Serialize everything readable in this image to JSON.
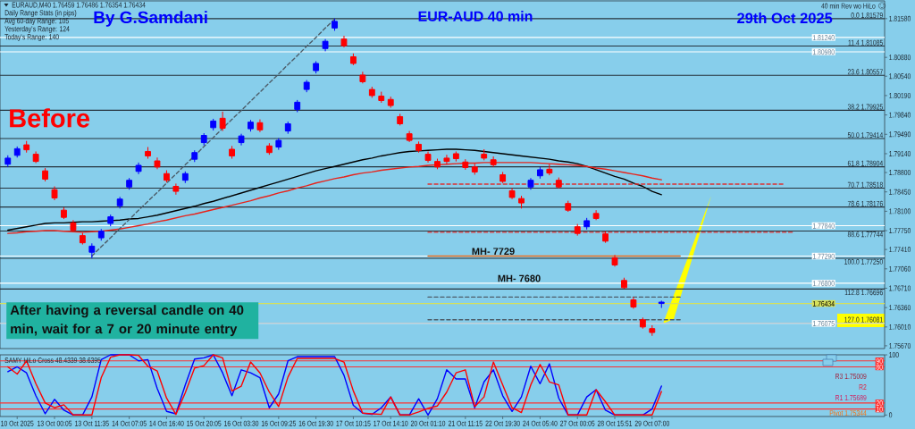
{
  "chart_data": [
    {
      "type": "candlestick",
      "title": "EUR-AUD 40 min",
      "subtitle": "29th Oct 2025",
      "annotations": [
        "EURAUD,M40 1.76459 1.76486 1.76354 1.76434",
        "Daily Range Stats (in pips)",
        "Avg 60-day Range: 105",
        "Yesterday's Range: 124",
        "Today's Range: 140",
        "By G.Samdani",
        "Before",
        "After having a reversal candle on 40 min, wait for a 7 or 20 minute entry",
        "40 min Rev wo HiLo",
        {
          "text": "MH- 7729",
          "y": 1.7729
        },
        {
          "text": "MH- 7680",
          "y": 1.768
        }
      ],
      "categories": [
        null,
        null,
        null,
        null,
        null,
        null,
        null,
        null,
        null,
        null,
        null,
        null,
        null,
        null,
        null,
        null,
        null,
        null,
        null,
        null,
        null,
        null,
        null,
        null,
        null,
        null,
        null,
        null,
        null,
        null,
        null,
        null,
        null,
        null,
        null,
        null,
        null,
        null,
        null,
        null,
        null,
        null,
        null,
        null,
        null,
        null,
        null,
        null,
        null,
        null,
        null,
        null,
        null,
        null,
        null,
        null,
        null,
        null,
        null,
        null,
        null,
        null,
        null,
        null,
        null,
        null,
        null,
        null,
        null,
        null,
        null,
        null,
        null,
        null,
        null,
        null,
        null,
        null,
        null,
        null,
        null,
        null,
        null,
        null,
        null,
        null,
        null,
        null,
        null,
        null,
        null
      ],
      "ohlc": [
        [
          1.7895,
          1.7911,
          1.789,
          1.7906
        ],
        [
          1.7911,
          1.7927,
          1.7907,
          1.7923
        ],
        [
          1.793,
          1.7937,
          1.7916,
          1.7921
        ],
        [
          1.7913,
          1.7918,
          1.7897,
          1.79
        ],
        [
          1.7883,
          1.7888,
          1.7864,
          1.7868
        ],
        [
          1.7849,
          1.7855,
          1.783,
          1.7834
        ],
        [
          1.7812,
          1.7817,
          1.7796,
          1.7799
        ],
        [
          1.7789,
          1.7794,
          1.7773,
          1.7776
        ],
        [
          1.7766,
          1.7771,
          1.775,
          1.7753
        ],
        [
          1.7736,
          1.7752,
          1.7725,
          1.7747
        ],
        [
          1.7762,
          1.7778,
          1.7757,
          1.7774
        ],
        [
          1.7788,
          1.7804,
          1.7783,
          1.78
        ],
        [
          1.782,
          1.7836,
          1.7815,
          1.7832
        ],
        [
          1.7854,
          1.787,
          1.7849,
          1.7866
        ],
        [
          1.7882,
          1.7898,
          1.7877,
          1.7893
        ],
        [
          1.7918,
          1.7926,
          1.7905,
          1.791
        ],
        [
          1.7901,
          1.7907,
          1.7886,
          1.789
        ],
        [
          1.7878,
          1.7884,
          1.7862,
          1.7866
        ],
        [
          1.7855,
          1.786,
          1.784,
          1.7846
        ],
        [
          1.7866,
          1.7882,
          1.7861,
          1.7878
        ],
        [
          1.7904,
          1.792,
          1.7899,
          1.7916
        ],
        [
          1.7934,
          1.7951,
          1.7929,
          1.7947
        ],
        [
          1.7961,
          1.7977,
          1.7956,
          1.7973
        ],
        [
          1.7978,
          1.799,
          1.7955,
          1.796
        ],
        [
          1.7922,
          1.7928,
          1.7905,
          1.791
        ],
        [
          1.7934,
          1.795,
          1.7929,
          1.7946
        ],
        [
          1.7959,
          1.7975,
          1.7954,
          1.7971
        ],
        [
          1.797,
          1.7976,
          1.7953,
          1.7957
        ],
        [
          1.7928,
          1.7933,
          1.7912,
          1.7916
        ],
        [
          1.7926,
          1.7942,
          1.7921,
          1.7938
        ],
        [
          1.7955,
          1.7972,
          1.795,
          1.7968
        ],
        [
          1.7994,
          1.8011,
          1.7989,
          1.8007
        ],
        [
          1.803,
          1.8047,
          1.8025,
          1.8043
        ],
        [
          1.8064,
          1.8081,
          1.8059,
          1.8077
        ],
        [
          1.8104,
          1.8121,
          1.8099,
          1.8117
        ],
        [
          1.8141,
          1.8158,
          1.8136,
          1.8153
        ],
        [
          1.8121,
          1.8127,
          1.8106,
          1.8109
        ],
        [
          1.8089,
          1.8095,
          1.8074,
          1.8077
        ],
        [
          1.8056,
          1.8062,
          1.8041,
          1.8044
        ],
        [
          1.803,
          1.8035,
          1.8015,
          1.8019
        ],
        [
          1.8018,
          1.8026,
          1.8006,
          1.801
        ],
        [
          1.8012,
          1.8017,
          1.7997,
          1.8001
        ],
        [
          1.7981,
          1.7986,
          1.7965,
          1.7968
        ],
        [
          1.795,
          1.7955,
          1.7935,
          1.7938
        ],
        [
          1.7931,
          1.7936,
          1.7916,
          1.792
        ],
        [
          1.7913,
          1.7918,
          1.7898,
          1.7902
        ],
        [
          1.79,
          1.7905,
          1.7886,
          1.789
        ],
        [
          1.7906,
          1.7912,
          1.7895,
          1.79
        ],
        [
          1.7914,
          1.7918,
          1.79,
          1.7905
        ],
        [
          1.7899,
          1.7904,
          1.7885,
          1.7889
        ],
        [
          1.789,
          1.7896,
          1.7876,
          1.7881
        ],
        [
          1.7913,
          1.7922,
          1.7902,
          1.7906
        ],
        [
          1.7903,
          1.7909,
          1.789,
          1.7894
        ],
        [
          1.7876,
          1.7881,
          1.7861,
          1.7864
        ],
        [
          1.7847,
          1.7852,
          1.7832,
          1.7835
        ],
        [
          1.7833,
          1.7838,
          1.7815,
          1.7825
        ],
        [
          1.7854,
          1.787,
          1.7849,
          1.7866
        ],
        [
          1.7874,
          1.789,
          1.7869,
          1.7885
        ],
        [
          1.7886,
          1.7895,
          1.7875,
          1.7879
        ],
        [
          1.7866,
          1.7871,
          1.7851,
          1.7854
        ],
        [
          1.7824,
          1.7829,
          1.7809,
          1.7812
        ],
        [
          1.7782,
          1.7787,
          1.7766,
          1.777
        ],
        [
          1.7782,
          1.7798,
          1.7777,
          1.7793
        ],
        [
          1.7806,
          1.7812,
          1.7794,
          1.7797
        ],
        [
          1.7769,
          1.7774,
          1.7753,
          1.7756
        ],
        [
          1.7726,
          1.7731,
          1.771,
          1.7713
        ],
        [
          1.7685,
          1.769,
          1.767,
          1.7672
        ],
        [
          1.765,
          1.7655,
          1.7634,
          1.7637
        ],
        [
          1.7614,
          1.7618,
          1.7598,
          1.7601
        ],
        [
          1.7598,
          1.7604,
          1.7585,
          1.7591
        ],
        [
          1.76459,
          1.76486,
          1.76354,
          1.76434
        ],
        null,
        null,
        null,
        null,
        null,
        null,
        null,
        null,
        null,
        null,
        null,
        null,
        null,
        null,
        null,
        null,
        null,
        null,
        null,
        null
      ],
      "colors": [
        "#0000ff",
        "#0000ff",
        "#ff0000",
        "#ff0000",
        "#ff0000",
        "#ff0000",
        "#ff0000",
        "#ff0000",
        "#ff0000",
        "#0000ff",
        "#0000ff",
        "#0000ff",
        "#0000ff",
        "#0000ff",
        "#0000ff",
        "#ff0000",
        "#ff0000",
        "#ff0000",
        "#ff0000",
        "#0000ff",
        "#0000ff",
        "#0000ff",
        "#0000ff",
        "#ff0000",
        "#ff0000",
        "#0000ff",
        "#0000ff",
        "#ff0000",
        "#ff0000",
        "#0000ff",
        "#0000ff",
        "#0000ff",
        "#0000ff",
        "#0000ff",
        "#0000ff",
        "#0000ff",
        "#ff0000",
        "#ff0000",
        "#ff0000",
        "#ff0000",
        "#ff0000",
        "#ff0000",
        "#ff0000",
        "#ff0000",
        "#ff0000",
        "#ff0000",
        "#ff0000",
        "#ff0000",
        "#ff0000",
        "#ff0000",
        "#ff0000",
        "#ff0000",
        "#ff0000",
        "#ff0000",
        "#ff0000",
        "#ff0000",
        "#0000ff",
        "#0000ff",
        "#ff0000",
        "#ff0000",
        "#ff0000",
        "#ff0000",
        "#0000ff",
        "#ff0000",
        "#ff0000",
        "#ff0000",
        "#ff0000",
        "#ff0000",
        "#ff0000",
        "#ff0000",
        "#0000ff",
        null,
        null,
        null,
        null,
        null,
        null,
        null,
        null,
        null,
        null,
        null,
        null,
        null,
        null,
        null,
        null,
        null,
        null,
        null,
        null
      ],
      "series": [
        {
          "type": "line",
          "color": "#000000",
          "values": [
            1.7776,
            1.7779,
            1.7782,
            1.7785,
            1.7788,
            1.7789,
            1.7789,
            1.779,
            1.7791,
            1.7791,
            1.7792,
            1.7793,
            1.7794,
            1.7796,
            1.7797,
            1.78,
            1.7803,
            1.7807,
            1.7811,
            1.7815,
            1.7819,
            1.7824,
            1.7828,
            1.7833,
            1.7838,
            1.7843,
            1.7848,
            1.7853,
            1.7858,
            1.7863,
            1.7868,
            1.7873,
            1.7878,
            1.7883,
            1.7887,
            1.7891,
            1.7895,
            1.7899,
            1.7903,
            1.7906,
            1.791,
            1.7913,
            1.7916,
            1.7918,
            1.7919,
            1.792,
            1.7921,
            1.7922,
            1.7922,
            1.7921,
            1.792,
            1.7918,
            1.7916,
            1.7914,
            1.7912,
            1.791,
            1.7908,
            1.7906,
            1.7904,
            1.7901,
            1.7899,
            1.7896,
            1.7891,
            1.7885,
            1.7879,
            1.7873,
            1.7868,
            1.7861,
            1.7855,
            1.7846,
            1.784,
            null,
            null,
            null,
            null,
            null,
            null,
            null,
            null,
            null,
            null,
            null,
            null,
            null,
            null,
            null,
            null,
            null,
            null,
            null,
            null
          ]
        },
        {
          "type": "line",
          "color": "#e8231b",
          "values": [
            1.777,
            1.7771,
            1.7773,
            1.7774,
            1.7775,
            1.7775,
            1.7774,
            1.7773,
            1.7772,
            1.7773,
            1.7774,
            1.7776,
            1.7778,
            1.7781,
            1.7784,
            1.7787,
            1.7791,
            1.7794,
            1.7798,
            1.7802,
            1.7805,
            1.7809,
            1.7813,
            1.7817,
            1.7821,
            1.7825,
            1.7829,
            1.7834,
            1.7838,
            1.7843,
            1.7847,
            1.7852,
            1.7856,
            1.7861,
            1.7865,
            1.7869,
            1.7872,
            1.7876,
            1.7879,
            1.7881,
            1.7884,
            1.7886,
            1.7888,
            1.789,
            1.7891,
            1.7893,
            1.7894,
            1.7895,
            1.7896,
            1.7897,
            1.7897,
            1.7898,
            1.7898,
            1.7898,
            1.7898,
            1.7898,
            1.7898,
            1.7897,
            1.7896,
            1.7895,
            1.7894,
            1.7893,
            1.7891,
            1.7888,
            1.7886,
            1.7883,
            1.788,
            1.7877,
            1.7874,
            1.787,
            1.7867,
            null,
            null,
            null,
            null,
            null,
            null,
            null,
            null,
            null,
            null,
            null,
            null,
            null,
            null,
            null,
            null,
            null,
            null,
            null,
            null
          ]
        },
        {
          "type": "line",
          "color": "#4d5d69",
          "line_style": "dashed",
          "values": [
            null,
            null,
            null,
            null,
            null,
            null,
            null,
            null,
            null,
            1.7729,
            1.7746,
            1.7762,
            1.7779,
            1.7795,
            1.7812,
            1.7828,
            1.7844,
            1.7861,
            1.7877,
            1.7894,
            1.791,
            1.7927,
            1.7943,
            1.796,
            1.7976,
            1.7992,
            1.8009,
            1.8025,
            1.8042,
            1.8058,
            1.8075,
            1.8091,
            1.8108,
            1.8124,
            1.8141,
            1.8157,
            null,
            null,
            null,
            null,
            null,
            null,
            null,
            null,
            null,
            null,
            null,
            null,
            null,
            null,
            null,
            null,
            null,
            null,
            null,
            null,
            null,
            null,
            null,
            null,
            null,
            null,
            null,
            null,
            null,
            null,
            null,
            null,
            null,
            null,
            null,
            null,
            null,
            null,
            null,
            null,
            null,
            null,
            null,
            null,
            null,
            null,
            null,
            null,
            null,
            null,
            null,
            null,
            null,
            null,
            null
          ]
        },
        {
          "type": "line",
          "color": "#f07020",
          "values": [
            null,
            null,
            null,
            null,
            null,
            null,
            null,
            null,
            null,
            null,
            null,
            null,
            null,
            null,
            null,
            null,
            null,
            null,
            null,
            null,
            null,
            null,
            null,
            null,
            null,
            null,
            null,
            null,
            null,
            null,
            null,
            null,
            null,
            null,
            null,
            null,
            null,
            null,
            null,
            null,
            null,
            null,
            null,
            null,
            null,
            1.7729,
            1.7729,
            1.7729,
            1.7729,
            1.7729,
            1.7729,
            1.7729,
            1.7729,
            1.7729,
            1.7729,
            1.7729,
            1.7729,
            1.7729,
            1.7729,
            1.7729,
            1.7729,
            1.7729,
            1.7729,
            1.7729,
            1.7729,
            1.7729,
            1.7729,
            1.7729,
            1.7729,
            1.7729,
            1.7729,
            1.7729,
            1.7729,
            null,
            null,
            null,
            null,
            null,
            null,
            null,
            null,
            null,
            null,
            null,
            null,
            null,
            null,
            null,
            null,
            null,
            null
          ]
        },
        {
          "type": "line",
          "color": "#e03030",
          "line_style": "dashed",
          "values": [
            null,
            null,
            null,
            null,
            null,
            null,
            null,
            null,
            null,
            null,
            null,
            null,
            null,
            null,
            null,
            null,
            null,
            null,
            null,
            null,
            null,
            null,
            null,
            null,
            null,
            null,
            null,
            null,
            null,
            null,
            null,
            null,
            null,
            null,
            null,
            null,
            null,
            null,
            null,
            null,
            null,
            null,
            null,
            null,
            null,
            1.7859,
            1.7859,
            1.7859,
            1.7859,
            1.7859,
            1.7859,
            1.7859,
            1.7859,
            1.7859,
            1.7859,
            1.7859,
            1.7859,
            1.7859,
            1.7859,
            1.7859,
            1.7859,
            1.7859,
            1.7859,
            1.7859,
            1.7859,
            1.7859,
            1.7859,
            1.7859,
            1.7859,
            1.7859,
            1.7859,
            1.7859,
            1.7859,
            1.7859,
            1.7859,
            1.7859,
            1.7859,
            1.7859,
            1.7859,
            1.7859,
            1.7859,
            1.7859,
            1.7859,
            1.7859,
            null,
            null,
            null,
            null,
            null,
            null,
            null
          ]
        },
        {
          "type": "line",
          "color": "#e03030",
          "line_style": "dashed",
          "values": [
            null,
            null,
            null,
            null,
            null,
            null,
            null,
            null,
            null,
            null,
            null,
            null,
            null,
            null,
            null,
            null,
            null,
            null,
            null,
            null,
            null,
            null,
            null,
            null,
            null,
            null,
            null,
            null,
            null,
            null,
            null,
            null,
            null,
            null,
            null,
            null,
            null,
            null,
            null,
            null,
            null,
            null,
            null,
            null,
            null,
            1.7772,
            1.7772,
            1.7772,
            1.7772,
            1.7772,
            1.7772,
            1.7772,
            1.7772,
            1.7772,
            1.7772,
            1.7772,
            1.7772,
            1.7772,
            1.7772,
            1.7772,
            1.7772,
            1.7772,
            1.7772,
            1.7772,
            1.7772,
            1.7772,
            1.7772,
            1.7772,
            1.7772,
            1.7772,
            1.7772,
            1.7772,
            1.7772,
            1.7772,
            1.7772,
            1.7772,
            1.7772,
            1.7772,
            1.7772,
            1.7772,
            1.7772,
            1.7772,
            1.7772,
            1.7772,
            1.7772,
            null,
            null,
            null,
            null,
            null,
            null
          ]
        },
        {
          "type": "line",
          "color": "#4d5d69",
          "line_style": "dashed",
          "values": [
            null,
            null,
            null,
            null,
            null,
            null,
            null,
            null,
            null,
            null,
            null,
            null,
            null,
            null,
            null,
            null,
            null,
            null,
            null,
            null,
            null,
            null,
            null,
            null,
            null,
            null,
            null,
            null,
            null,
            null,
            null,
            null,
            null,
            null,
            null,
            null,
            null,
            null,
            null,
            null,
            null,
            null,
            null,
            null,
            null,
            1.7655,
            1.7655,
            1.7655,
            1.7655,
            1.7655,
            1.7655,
            1.7655,
            1.7655,
            1.7655,
            1.7655,
            1.7655,
            1.7655,
            1.7655,
            1.7655,
            1.7655,
            1.7655,
            1.7655,
            1.7655,
            1.7655,
            1.7655,
            1.7655,
            1.7655,
            1.7655,
            1.7655,
            1.7655,
            1.7655,
            1.7655,
            1.7655,
            null,
            null,
            null,
            null,
            null,
            null,
            null,
            null,
            null,
            null,
            null,
            null,
            null,
            null,
            null,
            null,
            null,
            null
          ]
        },
        {
          "type": "line",
          "color": "#4d5d69",
          "line_style": "dashed",
          "values": [
            null,
            null,
            null,
            null,
            null,
            null,
            null,
            null,
            null,
            null,
            null,
            null,
            null,
            null,
            null,
            null,
            null,
            null,
            null,
            null,
            null,
            null,
            null,
            null,
            null,
            null,
            null,
            null,
            null,
            null,
            null,
            null,
            null,
            null,
            null,
            null,
            null,
            null,
            null,
            null,
            null,
            null,
            null,
            null,
            null,
            1.7614,
            1.7614,
            1.7614,
            1.7614,
            1.7614,
            1.7614,
            1.7614,
            1.7614,
            1.7614,
            1.7614,
            1.7614,
            1.7614,
            1.7614,
            1.7614,
            1.7614,
            1.7614,
            1.7614,
            1.7614,
            1.7614,
            1.7614,
            1.7614,
            1.7614,
            1.7614,
            1.7614,
            1.7614,
            1.7614,
            1.7614,
            1.7614,
            null,
            null,
            null,
            null,
            null,
            null,
            null,
            null,
            null,
            null,
            null,
            null,
            null,
            null,
            null,
            null,
            null,
            null
          ]
        }
      ],
      "ylim": [
        1.7562,
        1.819
      ],
      "yticks": [
        {
          "value": 1.8158,
          "label": "1.81580"
        },
        {
          "value": 1.8088,
          "label": "1.80880"
        },
        {
          "value": 1.8054,
          "label": "1.80540"
        },
        {
          "value": 1.8019,
          "label": "1.80190"
        },
        {
          "value": 1.7984,
          "label": "1.79840"
        },
        {
          "value": 1.7949,
          "label": "1.79490"
        },
        {
          "value": 1.7914,
          "label": "1.79140"
        },
        {
          "value": 1.788,
          "label": "1.78800"
        },
        {
          "value": 1.7845,
          "label": "1.78450"
        },
        {
          "value": 1.781,
          "label": "1.78100"
        },
        {
          "value": 1.7775,
          "label": "1.77750"
        },
        {
          "value": 1.7741,
          "label": "1.77410"
        },
        {
          "value": 1.7706,
          "label": "1.77060"
        },
        {
          "value": 1.7671,
          "label": "1.76710"
        },
        {
          "value": 1.7636,
          "label": "1.76360"
        },
        {
          "value": 1.7601,
          "label": "1.76010"
        },
        {
          "value": 1.7567,
          "label": "1.75670"
        }
      ],
      "ref_lines": [
        {
          "axis": "y",
          "value": 1.81579,
          "label": "0.0 1.81579",
          "color": "#26333d"
        },
        {
          "axis": "y",
          "value": 1.81085,
          "label": "11.4 1.81085",
          "color": "#26333d"
        },
        {
          "axis": "y",
          "value": 1.80557,
          "label": "23.6 1.80557",
          "color": "#26333d"
        },
        {
          "axis": "y",
          "value": 1.79925,
          "label": "38.2 1.79925",
          "color": "#26333d"
        },
        {
          "axis": "y",
          "value": 1.79414,
          "label": "50.0 1.79414",
          "color": "#26333d"
        },
        {
          "axis": "y",
          "value": 1.78904,
          "label": "61.8 1.78904",
          "color": "#26333d"
        },
        {
          "axis": "y",
          "value": 1.78518,
          "label": "70.7 1.78518",
          "color": "#26333d"
        },
        {
          "axis": "y",
          "value": 1.78176,
          "label": "78.6 1.78176",
          "color": "#26333d"
        },
        {
          "axis": "y",
          "value": 1.77744,
          "label": "88.6 1.77744",
          "color": "#26333d"
        },
        {
          "axis": "y",
          "value": 1.7725,
          "label": "100.0 1.77250",
          "color": "#26333d"
        },
        {
          "axis": "y",
          "value": 1.76696,
          "label": "112.8 1.76696",
          "color": "#26333d"
        },
        {
          "axis": "y",
          "value": 1.76081,
          "label": "127.0 1.76081",
          "color": "#26333d"
        },
        {
          "axis": "y",
          "value": 1.8124,
          "label": "1.81240",
          "color": "#ffffff"
        },
        {
          "axis": "y",
          "value": 1.8098,
          "label": "1.80980",
          "color": "#ffffff"
        },
        {
          "axis": "y",
          "value": 1.7784,
          "label": "1.77840",
          "color": "#ffffff"
        },
        {
          "axis": "y",
          "value": 1.7729,
          "label": "1.77290",
          "color": "#ffffff"
        },
        {
          "axis": "y",
          "value": 1.768,
          "label": "1.76800",
          "color": "#ffffff"
        },
        {
          "axis": "y",
          "value": 1.76075,
          "label": "1.76075",
          "color": "#ffffff"
        },
        {
          "axis": "y",
          "value": 1.76434,
          "label": "1.76434",
          "color": "#d6e05a"
        }
      ],
      "tick_labels": "y"
    },
    {
      "type": "line",
      "annotations": [
        "SAMY HiLo Cross 48.4339 38.6395",
        "R3 1.75009",
        "R2",
        "R1 1.75689",
        "Pivot 1.75344"
      ],
      "categories": [
        null,
        "10 Oct 2025",
        null,
        null,
        null,
        "13 Oct 00:05",
        null,
        null,
        null,
        "13 Oct 11:35",
        null,
        null,
        null,
        "14 Oct 07:05",
        null,
        null,
        null,
        "14 Oct 16:40",
        null,
        null,
        null,
        "15 Oct 20:05",
        null,
        null,
        null,
        "16 Oct 03:30",
        null,
        null,
        null,
        "16 Oct 09:25",
        null,
        null,
        null,
        "16 Oct 19:30",
        null,
        null,
        null,
        "17 Oct 10:15",
        null,
        null,
        null,
        "17 Oct 14:10",
        null,
        null,
        null,
        "20 Oct 01:10",
        null,
        null,
        null,
        "21 Oct 11:15",
        null,
        null,
        null,
        "22 Oct 19:30",
        null,
        null,
        null,
        "24 Oct 05:40",
        null,
        null,
        null,
        "27 Oct 00:05",
        null,
        null,
        null,
        "28 Oct 15:51",
        null,
        null,
        null,
        "29 Oct 07:00",
        null,
        null,
        null,
        null,
        null,
        null,
        null,
        null,
        null,
        null,
        null,
        null,
        null,
        null,
        null,
        null,
        null,
        null,
        null,
        null,
        null
      ],
      "series": [
        {
          "color": "#0000ff",
          "values": [
            72,
            80,
            70,
            32,
            2,
            26,
            8,
            0,
            0,
            30,
            92,
            100,
            100,
            100,
            90,
            92,
            44,
            6,
            2,
            50,
            93,
            95,
            100,
            70,
            32,
            75,
            70,
            62,
            12,
            35,
            90,
            97,
            97,
            97,
            97,
            97,
            66,
            16,
            3,
            1,
            12,
            30,
            0,
            0,
            27,
            0,
            27,
            75,
            60,
            60,
            12,
            55,
            75,
            32,
            6,
            30,
            81,
            52,
            85,
            28,
            0,
            0,
            30,
            42,
            8,
            0,
            0,
            0,
            0,
            10,
            48,
            null,
            null,
            null,
            null,
            null,
            null,
            null,
            null,
            null,
            null,
            null,
            null,
            null,
            null,
            null,
            null,
            null,
            null,
            null,
            null
          ]
        },
        {
          "color": "#ff0000",
          "values": [
            80,
            68,
            90,
            52,
            20,
            12,
            17,
            0,
            0,
            0,
            62,
            96,
            100,
            100,
            99,
            81,
            73,
            28,
            1,
            37,
            78,
            82,
            100,
            95,
            40,
            48,
            88,
            70,
            38,
            14,
            63,
            94,
            94,
            94,
            94,
            94,
            88,
            40,
            3,
            2,
            1,
            30,
            0,
            0,
            5,
            11,
            15,
            38,
            70,
            75,
            14,
            30,
            88,
            50,
            12,
            4,
            50,
            84,
            55,
            50,
            0,
            0,
            0,
            42,
            22,
            0,
            0,
            0,
            0,
            0,
            39,
            null,
            null,
            null,
            null,
            null,
            null,
            null,
            null,
            null,
            null,
            null,
            null,
            null,
            null,
            null,
            null,
            null,
            null,
            null,
            null
          ]
        }
      ],
      "ylim": [
        -2.5,
        100
      ],
      "yticks": [
        0,
        100
      ],
      "ref_lines": [
        {
          "axis": "y",
          "value": 90,
          "label": "90",
          "color": "#ff3030"
        },
        {
          "axis": "y",
          "value": 80,
          "label": "80",
          "color": "#ff3030"
        },
        {
          "axis": "y",
          "value": 20,
          "label": "20",
          "color": "#ff3030"
        },
        {
          "axis": "y",
          "value": 10,
          "label": "10",
          "color": "#ff3030"
        }
      ]
    }
  ]
}
